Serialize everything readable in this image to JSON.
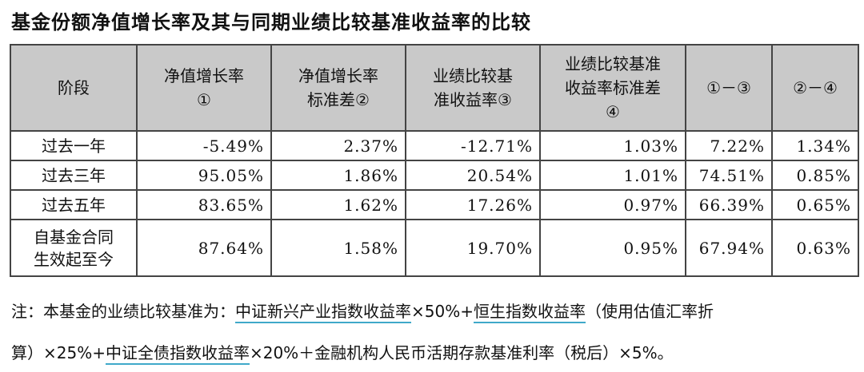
{
  "title": "基金份额净值增长率及其与同期业绩比较基准收益率的比较",
  "table": {
    "headers": [
      [
        "阶段"
      ],
      [
        "净值增长率",
        "①"
      ],
      [
        "净值增长率",
        "标准差②"
      ],
      [
        "业绩比较基",
        "准收益率③"
      ],
      [
        "业绩比较基准",
        "收益率标准差",
        "④"
      ],
      [
        "①－③"
      ],
      [
        "②－④"
      ]
    ],
    "rows": [
      {
        "stage": [
          "过去一年"
        ],
        "values": [
          "-5.49%",
          "2.37%",
          "-12.71%",
          "1.03%",
          "7.22%",
          "1.34%"
        ]
      },
      {
        "stage": [
          "过去三年"
        ],
        "values": [
          "95.05%",
          "1.86%",
          "20.54%",
          "1.01%",
          "74.51%",
          "0.85%"
        ]
      },
      {
        "stage": [
          "过去五年"
        ],
        "values": [
          "83.65%",
          "1.62%",
          "17.26%",
          "0.97%",
          "66.39%",
          "0.65%"
        ]
      },
      {
        "stage": [
          "自基金合同",
          "生效起至今"
        ],
        "values": [
          "87.64%",
          "1.58%",
          "19.70%",
          "0.95%",
          "67.94%",
          "0.63%"
        ]
      }
    ]
  },
  "note": {
    "line1": {
      "prefix": "注：本基金的业绩比较基准为：",
      "link1": "中证新兴产业指数收益率",
      "mid1": "×50%+",
      "link2": "恒生指数收益率",
      "suffix": "（使用估值汇率折"
    },
    "line2": {
      "prefix": "算）×25%+",
      "link3": "中证全债指数收益率",
      "suffix": "×20%＋金融机构人民币活期存款基准利率（税后）×5%。"
    }
  },
  "colors": {
    "header_bg": "#c9c9c9",
    "border": "#444444",
    "underline": "#3fa9c9"
  }
}
